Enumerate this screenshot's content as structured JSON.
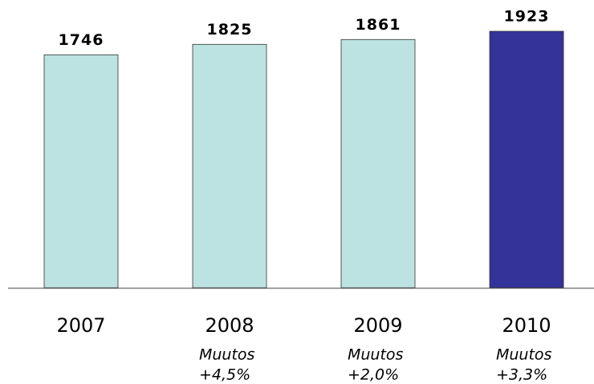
{
  "chart_data": {
    "type": "bar",
    "categories": [
      "2007",
      "2008",
      "2009",
      "2010"
    ],
    "values": [
      1746,
      1825,
      1861,
      1923
    ],
    "colors": [
      "#bde2e2",
      "#bde2e2",
      "#bde2e2",
      "#333399"
    ],
    "annotations": [
      null,
      [
        "Muutos",
        "+4,5%"
      ],
      [
        "Muutos",
        "+2,0%"
      ],
      [
        "Muutos",
        "+3,3%"
      ]
    ]
  }
}
